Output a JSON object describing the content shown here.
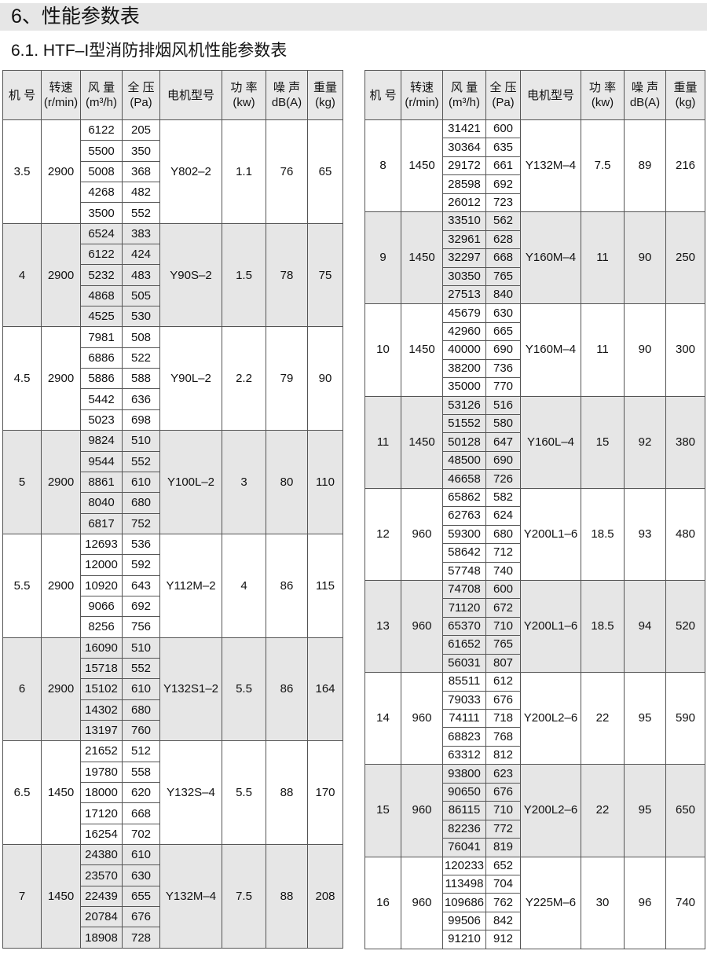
{
  "section_title": "6、性能参数表",
  "subtitle": "6.1. HTF–I型消防排烟风机性能参数表",
  "colors": {
    "header_bg": "#e8e8e8",
    "alt_group_bg": "#e6e6e6",
    "title_bar_bg": "#e6e6e6",
    "border": "#555555"
  },
  "table_headers": [
    [
      "机 号"
    ],
    [
      "转速",
      "(r/min)"
    ],
    [
      "风 量",
      "(m³/h)"
    ],
    [
      "全 压",
      "(Pa)"
    ],
    [
      "电机型号"
    ],
    [
      "功 率",
      "(kw)"
    ],
    [
      "噪 声",
      "dB(A)"
    ],
    [
      "重量",
      "(kg)"
    ]
  ],
  "left_table": [
    {
      "no": "3.5",
      "speed": "2900",
      "rows": [
        [
          "6122",
          "205"
        ],
        [
          "5500",
          "350"
        ],
        [
          "5008",
          "368"
        ],
        [
          "4268",
          "482"
        ],
        [
          "3500",
          "552"
        ]
      ],
      "motor": "Y802–2",
      "power": "1.1",
      "noise": "76",
      "weight": "65"
    },
    {
      "no": "4",
      "speed": "2900",
      "rows": [
        [
          "6524",
          "383"
        ],
        [
          "6122",
          "424"
        ],
        [
          "5232",
          "483"
        ],
        [
          "4868",
          "505"
        ],
        [
          "4525",
          "530"
        ]
      ],
      "motor": "Y90S–2",
      "power": "1.5",
      "noise": "78",
      "weight": "75"
    },
    {
      "no": "4.5",
      "speed": "2900",
      "rows": [
        [
          "7981",
          "508"
        ],
        [
          "6886",
          "522"
        ],
        [
          "5886",
          "588"
        ],
        [
          "5442",
          "636"
        ],
        [
          "5023",
          "698"
        ]
      ],
      "motor": "Y90L–2",
      "power": "2.2",
      "noise": "79",
      "weight": "90"
    },
    {
      "no": "5",
      "speed": "2900",
      "rows": [
        [
          "9824",
          "510"
        ],
        [
          "9544",
          "552"
        ],
        [
          "8861",
          "610"
        ],
        [
          "8040",
          "680"
        ],
        [
          "6817",
          "752"
        ]
      ],
      "motor": "Y100L–2",
      "power": "3",
      "noise": "80",
      "weight": "110"
    },
    {
      "no": "5.5",
      "speed": "2900",
      "rows": [
        [
          "12693",
          "536"
        ],
        [
          "12000",
          "592"
        ],
        [
          "10920",
          "643"
        ],
        [
          "9066",
          "692"
        ],
        [
          "8256",
          "756"
        ]
      ],
      "motor": "Y112M–2",
      "power": "4",
      "noise": "86",
      "weight": "115"
    },
    {
      "no": "6",
      "speed": "2900",
      "rows": [
        [
          "16090",
          "510"
        ],
        [
          "15718",
          "552"
        ],
        [
          "15102",
          "610"
        ],
        [
          "14302",
          "680"
        ],
        [
          "13197",
          "760"
        ]
      ],
      "motor": "Y132S1–2",
      "power": "5.5",
      "noise": "86",
      "weight": "164"
    },
    {
      "no": "6.5",
      "speed": "1450",
      "rows": [
        [
          "21652",
          "512"
        ],
        [
          "19780",
          "558"
        ],
        [
          "18000",
          "620"
        ],
        [
          "17120",
          "668"
        ],
        [
          "16254",
          "702"
        ]
      ],
      "motor": "Y132S–4",
      "power": "5.5",
      "noise": "88",
      "weight": "170"
    },
    {
      "no": "7",
      "speed": "1450",
      "rows": [
        [
          "24380",
          "610"
        ],
        [
          "23570",
          "630"
        ],
        [
          "22439",
          "655"
        ],
        [
          "20784",
          "676"
        ],
        [
          "18908",
          "728"
        ]
      ],
      "motor": "Y132M–4",
      "power": "7.5",
      "noise": "88",
      "weight": "208"
    }
  ],
  "right_table": [
    {
      "no": "8",
      "speed": "1450",
      "rows": [
        [
          "31421",
          "600"
        ],
        [
          "30364",
          "635"
        ],
        [
          "29172",
          "661"
        ],
        [
          "28598",
          "692"
        ],
        [
          "26012",
          "723"
        ]
      ],
      "motor": "Y132M–4",
      "power": "7.5",
      "noise": "89",
      "weight": "216"
    },
    {
      "no": "9",
      "speed": "1450",
      "rows": [
        [
          "33510",
          "562"
        ],
        [
          "32961",
          "628"
        ],
        [
          "32297",
          "668"
        ],
        [
          "30350",
          "765"
        ],
        [
          "27513",
          "840"
        ]
      ],
      "motor": "Y160M–4",
      "power": "11",
      "noise": "90",
      "weight": "250"
    },
    {
      "no": "10",
      "speed": "1450",
      "rows": [
        [
          "45679",
          "630"
        ],
        [
          "42960",
          "665"
        ],
        [
          "40000",
          "690"
        ],
        [
          "38200",
          "736"
        ],
        [
          "35000",
          "770"
        ]
      ],
      "motor": "Y160M–4",
      "power": "11",
      "noise": "90",
      "weight": "300"
    },
    {
      "no": "11",
      "speed": "1450",
      "rows": [
        [
          "53126",
          "516"
        ],
        [
          "51552",
          "580"
        ],
        [
          "50128",
          "647"
        ],
        [
          "48500",
          "690"
        ],
        [
          "46658",
          "726"
        ]
      ],
      "motor": "Y160L–4",
      "power": "15",
      "noise": "92",
      "weight": "380"
    },
    {
      "no": "12",
      "speed": "960",
      "rows": [
        [
          "65862",
          "582"
        ],
        [
          "62763",
          "624"
        ],
        [
          "59300",
          "680"
        ],
        [
          "58642",
          "712"
        ],
        [
          "57748",
          "740"
        ]
      ],
      "motor": "Y200L1–6",
      "power": "18.5",
      "noise": "93",
      "weight": "480"
    },
    {
      "no": "13",
      "speed": "960",
      "rows": [
        [
          "74708",
          "600"
        ],
        [
          "71120",
          "672"
        ],
        [
          "65370",
          "710"
        ],
        [
          "61652",
          "765"
        ],
        [
          "56031",
          "807"
        ]
      ],
      "motor": "Y200L1–6",
      "power": "18.5",
      "noise": "94",
      "weight": "520"
    },
    {
      "no": "14",
      "speed": "960",
      "rows": [
        [
          "85511",
          "612"
        ],
        [
          "79033",
          "676"
        ],
        [
          "74111",
          "718"
        ],
        [
          "68823",
          "768"
        ],
        [
          "63312",
          "812"
        ]
      ],
      "motor": "Y200L2–6",
      "power": "22",
      "noise": "95",
      "weight": "590"
    },
    {
      "no": "15",
      "speed": "960",
      "rows": [
        [
          "93800",
          "623"
        ],
        [
          "90650",
          "676"
        ],
        [
          "86115",
          "710"
        ],
        [
          "82236",
          "772"
        ],
        [
          "76041",
          "819"
        ]
      ],
      "motor": "Y200L2–6",
      "power": "22",
      "noise": "95",
      "weight": "650"
    },
    {
      "no": "16",
      "speed": "960",
      "rows": [
        [
          "120233",
          "652"
        ],
        [
          "113498",
          "704"
        ],
        [
          "109686",
          "762"
        ],
        [
          "99506",
          "842"
        ],
        [
          "91210",
          "912"
        ]
      ],
      "motor": "Y225M–6",
      "power": "30",
      "noise": "96",
      "weight": "740"
    }
  ]
}
